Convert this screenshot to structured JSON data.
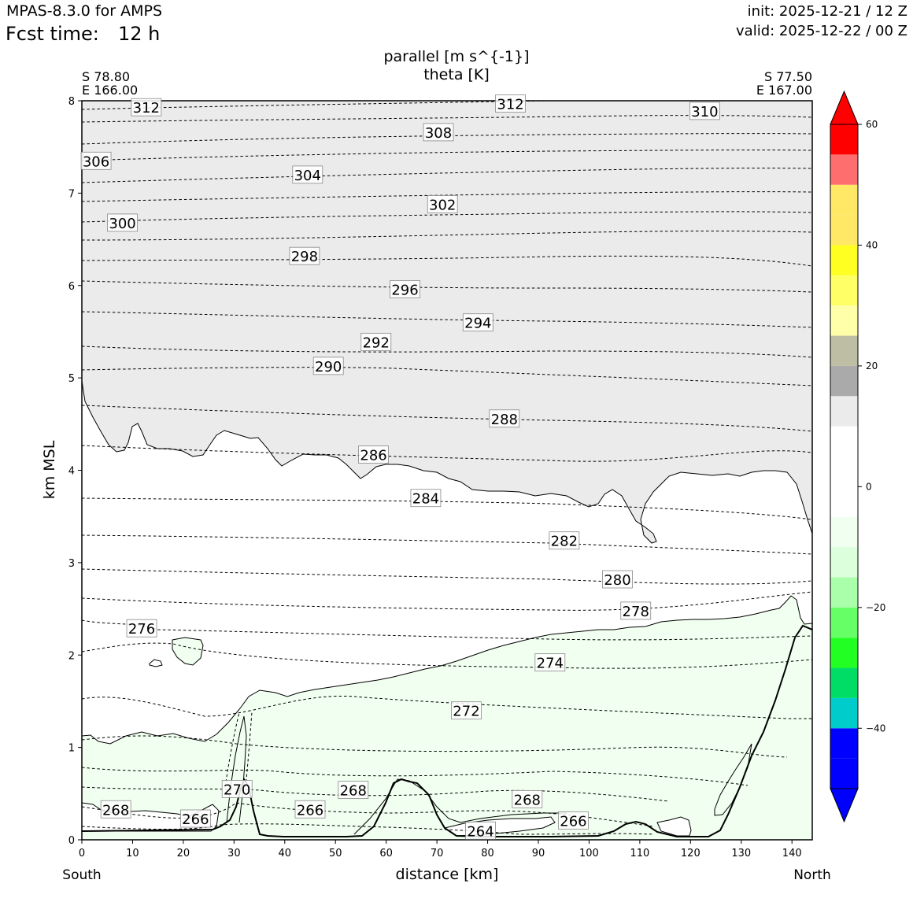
{
  "header": {
    "model": "MPAS-8.3.0 for AMPS",
    "fcst_label": "Fcst time:",
    "fcst_value": "12 h",
    "init": "init: 2025-12-21 / 12 Z",
    "valid": "valid: 2025-12-22 / 00 Z"
  },
  "chart_data": {
    "type": "contour",
    "title": "parallel [m s^{-1}]",
    "subtitle": "theta [K]",
    "xlabel": "distance [km]",
    "ylabel": "km MSL",
    "xlim": [
      0,
      144
    ],
    "ylim": [
      0,
      8
    ],
    "xticks": [
      0,
      10,
      20,
      30,
      40,
      50,
      60,
      70,
      80,
      90,
      100,
      110,
      120,
      130,
      140
    ],
    "yticks": [
      0,
      1,
      2,
      3,
      4,
      5,
      6,
      7,
      8
    ],
    "left_end": {
      "lat": "S 78.80",
      "lon": "E 166.00",
      "direction": "South"
    },
    "right_end": {
      "lat": "S 77.50",
      "lon": "E 167.00",
      "direction": "North"
    },
    "theta_labels": [
      {
        "value": "312",
        "x": 12.7,
        "y": 7.93
      },
      {
        "value": "312",
        "x": 84.5,
        "y": 7.97
      },
      {
        "value": "310",
        "x": 122.8,
        "y": 7.89
      },
      {
        "value": "308",
        "x": 70.3,
        "y": 7.66
      },
      {
        "value": "306",
        "x": 2.8,
        "y": 7.35
      },
      {
        "value": "304",
        "x": 44.5,
        "y": 7.2
      },
      {
        "value": "302",
        "x": 71.1,
        "y": 6.88
      },
      {
        "value": "300",
        "x": 8.0,
        "y": 6.68
      },
      {
        "value": "298",
        "x": 43.9,
        "y": 6.32
      },
      {
        "value": "296",
        "x": 63.7,
        "y": 5.96
      },
      {
        "value": "294",
        "x": 78.1,
        "y": 5.6
      },
      {
        "value": "292",
        "x": 58.0,
        "y": 5.39
      },
      {
        "value": "290",
        "x": 48.6,
        "y": 5.13
      },
      {
        "value": "288",
        "x": 83.3,
        "y": 4.56
      },
      {
        "value": "286",
        "x": 57.5,
        "y": 4.17
      },
      {
        "value": "284",
        "x": 67.8,
        "y": 3.7
      },
      {
        "value": "282",
        "x": 95.1,
        "y": 3.24
      },
      {
        "value": "280",
        "x": 105.6,
        "y": 2.82
      },
      {
        "value": "278",
        "x": 109.2,
        "y": 2.48
      },
      {
        "value": "276",
        "x": 11.8,
        "y": 2.29
      },
      {
        "value": "274",
        "x": 92.3,
        "y": 1.92
      },
      {
        "value": "272",
        "x": 75.8,
        "y": 1.4
      },
      {
        "value": "270",
        "x": 30.6,
        "y": 0.55
      },
      {
        "value": "268",
        "x": 6.7,
        "y": 0.33
      },
      {
        "value": "268",
        "x": 53.5,
        "y": 0.54
      },
      {
        "value": "268",
        "x": 87.8,
        "y": 0.44
      },
      {
        "value": "266",
        "x": 22.4,
        "y": 0.23
      },
      {
        "value": "266",
        "x": 45.0,
        "y": 0.33
      },
      {
        "value": "266",
        "x": 96.9,
        "y": 0.21
      },
      {
        "value": "264",
        "x": 78.6,
        "y": 0.1
      }
    ],
    "colorbar": {
      "ticks": [
        60,
        40,
        20,
        0,
        -20,
        -40
      ],
      "tick_labels": [
        "60",
        "40",
        "20",
        "0",
        "−20",
        "−40"
      ],
      "bounds": [
        -50,
        -45,
        -40,
        -35,
        -30,
        -25,
        -20,
        -15,
        -10,
        -5,
        0,
        5,
        10,
        15,
        20,
        25,
        30,
        35,
        40,
        45,
        50,
        55,
        60
      ],
      "colors": [
        "#0000ff",
        "#0000ff",
        "#00cccc",
        "#00dd66",
        "#22ff22",
        "#66ff66",
        "#aaffaa",
        "#dcffdc",
        "#f0fff0",
        "#ffffff",
        "#ffffff",
        "#ffffff",
        "#ebebeb",
        "#aaaaaa",
        "#bebea4",
        "#ffffaa",
        "#ffff66",
        "#ffff22",
        "#ffe866",
        "#ffe866",
        "#ff6e6e",
        "#ff0000"
      ],
      "under_color": "#0000ff",
      "over_color": "#ff0000"
    }
  }
}
